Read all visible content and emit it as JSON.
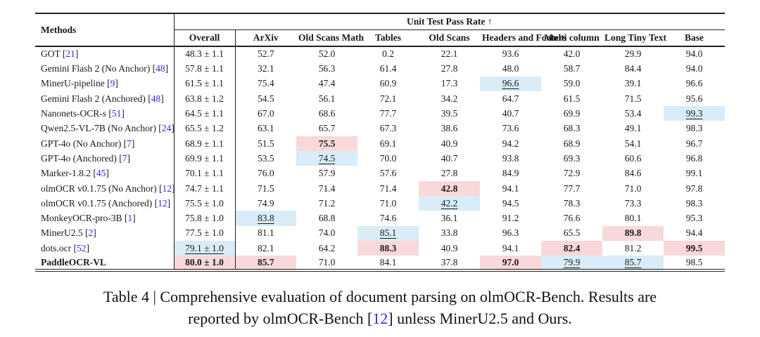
{
  "colors": {
    "best_bg": "#f9d8da",
    "second_bg": "#d9ecf8",
    "cite_blue": "#2a2af0",
    "text": "#1a1a1a"
  },
  "table": {
    "methods_header": "Methods",
    "group_header": "Unit Test Pass Rate ↑",
    "columns": [
      "Overall",
      "ArXiv",
      "Old Scans Math",
      "Tables",
      "Old Scans",
      "Headers and Footers",
      "Multi column",
      "Long Tiny Text",
      "Base"
    ],
    "highlight_legend": {
      "best": "bold on pink background",
      "second": "underlined on blue background"
    },
    "rows": [
      {
        "method": "GOT",
        "cite": "21",
        "bold": false,
        "cells": [
          {
            "v": "48.3 ± 1.1"
          },
          {
            "v": "52.7"
          },
          {
            "v": "52.0"
          },
          {
            "v": "0.2"
          },
          {
            "v": "22.1"
          },
          {
            "v": "93.6"
          },
          {
            "v": "42.0"
          },
          {
            "v": "29.9"
          },
          {
            "v": "94.0"
          }
        ]
      },
      {
        "method": "Gemini Flash 2 (No Anchor)",
        "cite": "48",
        "bold": false,
        "cells": [
          {
            "v": "57.8 ± 1.1"
          },
          {
            "v": "32.1"
          },
          {
            "v": "56.3"
          },
          {
            "v": "61.4"
          },
          {
            "v": "27.8"
          },
          {
            "v": "48.0"
          },
          {
            "v": "58.7"
          },
          {
            "v": "84.4"
          },
          {
            "v": "94.0"
          }
        ]
      },
      {
        "method": "MinerU-pipeline",
        "cite": "9",
        "bold": false,
        "cells": [
          {
            "v": "61.5 ± 1.1"
          },
          {
            "v": "75.4"
          },
          {
            "v": "47.4"
          },
          {
            "v": "60.9"
          },
          {
            "v": "17.3"
          },
          {
            "v": "96.6",
            "m": "second"
          },
          {
            "v": "59.0"
          },
          {
            "v": "39.1"
          },
          {
            "v": "96.6"
          }
        ]
      },
      {
        "method": "Gemini Flash 2 (Anchored)",
        "cite": "48",
        "bold": false,
        "cells": [
          {
            "v": "63.8 ± 1.2"
          },
          {
            "v": "54.5"
          },
          {
            "v": "56.1"
          },
          {
            "v": "72.1"
          },
          {
            "v": "34.2"
          },
          {
            "v": "64.7"
          },
          {
            "v": "61.5"
          },
          {
            "v": "71.5"
          },
          {
            "v": "95.6"
          }
        ]
      },
      {
        "method": "Nanonets-OCR-s",
        "cite": "51",
        "bold": false,
        "cells": [
          {
            "v": "64.5 ± 1.1"
          },
          {
            "v": "67.0"
          },
          {
            "v": "68.6"
          },
          {
            "v": "77.7"
          },
          {
            "v": "39.5"
          },
          {
            "v": "40.7"
          },
          {
            "v": "69.9"
          },
          {
            "v": "53.4"
          },
          {
            "v": "99.3",
            "m": "second"
          }
        ]
      },
      {
        "method": "Qwen2.5-VL-7B (No Anchor)",
        "cite": "24",
        "bold": false,
        "cells": [
          {
            "v": "65.5 ± 1.2"
          },
          {
            "v": "63.1"
          },
          {
            "v": "65.7"
          },
          {
            "v": "67.3"
          },
          {
            "v": "38.6"
          },
          {
            "v": "73.6"
          },
          {
            "v": "68.3"
          },
          {
            "v": "49.1"
          },
          {
            "v": "98.3"
          }
        ]
      },
      {
        "method": "GPT-4o (No Anchor)",
        "cite": "7",
        "bold": false,
        "cells": [
          {
            "v": "68.9 ± 1.1"
          },
          {
            "v": "51.5"
          },
          {
            "v": "75.5",
            "m": "best"
          },
          {
            "v": "69.1"
          },
          {
            "v": "40.9"
          },
          {
            "v": "94.2"
          },
          {
            "v": "68.9"
          },
          {
            "v": "54.1"
          },
          {
            "v": "96.7"
          }
        ]
      },
      {
        "method": "GPT-4o (Anchored)",
        "cite": "7",
        "bold": false,
        "cells": [
          {
            "v": "69.9 ± 1.1"
          },
          {
            "v": "53.5"
          },
          {
            "v": "74.5",
            "m": "second"
          },
          {
            "v": "70.0"
          },
          {
            "v": "40.7"
          },
          {
            "v": "93.8"
          },
          {
            "v": "69.3"
          },
          {
            "v": "60.6"
          },
          {
            "v": "96.8"
          }
        ]
      },
      {
        "method": "Marker-1.8.2",
        "cite": "45",
        "bold": false,
        "cells": [
          {
            "v": "70.1 ± 1.1"
          },
          {
            "v": "76.0"
          },
          {
            "v": "57.9"
          },
          {
            "v": "57.6"
          },
          {
            "v": "27.8"
          },
          {
            "v": "84.9"
          },
          {
            "v": "72.9"
          },
          {
            "v": "84.6"
          },
          {
            "v": "99.1"
          }
        ]
      },
      {
        "method": "olmOCR v0.1.75 (No Anchor)",
        "cite": "12",
        "bold": false,
        "cells": [
          {
            "v": "74.7 ± 1.1"
          },
          {
            "v": "71.5"
          },
          {
            "v": "71.4"
          },
          {
            "v": "71.4"
          },
          {
            "v": "42.8",
            "m": "best"
          },
          {
            "v": "94.1"
          },
          {
            "v": "77.7"
          },
          {
            "v": "71.0"
          },
          {
            "v": "97.8"
          }
        ]
      },
      {
        "method": "olmOCR v0.1.75 (Anchored)",
        "cite": "12",
        "bold": false,
        "cells": [
          {
            "v": "75.5 ± 1.0"
          },
          {
            "v": "74.9"
          },
          {
            "v": "71.2"
          },
          {
            "v": "71.0"
          },
          {
            "v": "42.2",
            "m": "second"
          },
          {
            "v": "94.5"
          },
          {
            "v": "78.3"
          },
          {
            "v": "73.3"
          },
          {
            "v": "98.3"
          }
        ]
      },
      {
        "method": "MonkeyOCR-pro-3B",
        "cite": "1",
        "bold": false,
        "cells": [
          {
            "v": "75.8 ± 1.0"
          },
          {
            "v": "83.8",
            "m": "second"
          },
          {
            "v": "68.8"
          },
          {
            "v": "74.6"
          },
          {
            "v": "36.1"
          },
          {
            "v": "91.2"
          },
          {
            "v": "76.6"
          },
          {
            "v": "80.1"
          },
          {
            "v": "95.3"
          }
        ]
      },
      {
        "method": "MinerU2.5",
        "cite": "2",
        "bold": false,
        "cells": [
          {
            "v": "77.5 ± 1.0"
          },
          {
            "v": "81.1"
          },
          {
            "v": "74.0"
          },
          {
            "v": "85.1",
            "m": "second"
          },
          {
            "v": "33.8"
          },
          {
            "v": "96.3"
          },
          {
            "v": "65.5"
          },
          {
            "v": "89.8",
            "m": "best"
          },
          {
            "v": "94.4"
          }
        ]
      },
      {
        "method": "dots.ocr",
        "cite": "52",
        "bold": false,
        "cells": [
          {
            "v": "79.1 ± 1.0",
            "m": "second"
          },
          {
            "v": "82.1"
          },
          {
            "v": "64.2"
          },
          {
            "v": "88.3",
            "m": "best"
          },
          {
            "v": "40.9"
          },
          {
            "v": "94.1"
          },
          {
            "v": "82.4",
            "m": "best"
          },
          {
            "v": "81.2"
          },
          {
            "v": "99.5",
            "m": "best"
          }
        ]
      },
      {
        "method": "PaddleOCR-VL",
        "cite": "",
        "bold": true,
        "cells": [
          {
            "v": "80.0 ± 1.0",
            "m": "best"
          },
          {
            "v": "85.7",
            "m": "best"
          },
          {
            "v": "71.0"
          },
          {
            "v": "84.1"
          },
          {
            "v": "37.8"
          },
          {
            "v": "97.0",
            "m": "best"
          },
          {
            "v": "79.9",
            "m": "second"
          },
          {
            "v": "85.7",
            "m": "second"
          },
          {
            "v": "98.5"
          }
        ]
      }
    ]
  },
  "caption": {
    "line1": "Table 4 | Comprehensive evaluation of document parsing on olmOCR-Bench. Results are",
    "line2_prefix": "reported by olmOCR-Bench [",
    "line2_cite": "12",
    "line2_suffix": "] unless MinerU2.5 and Ours."
  }
}
